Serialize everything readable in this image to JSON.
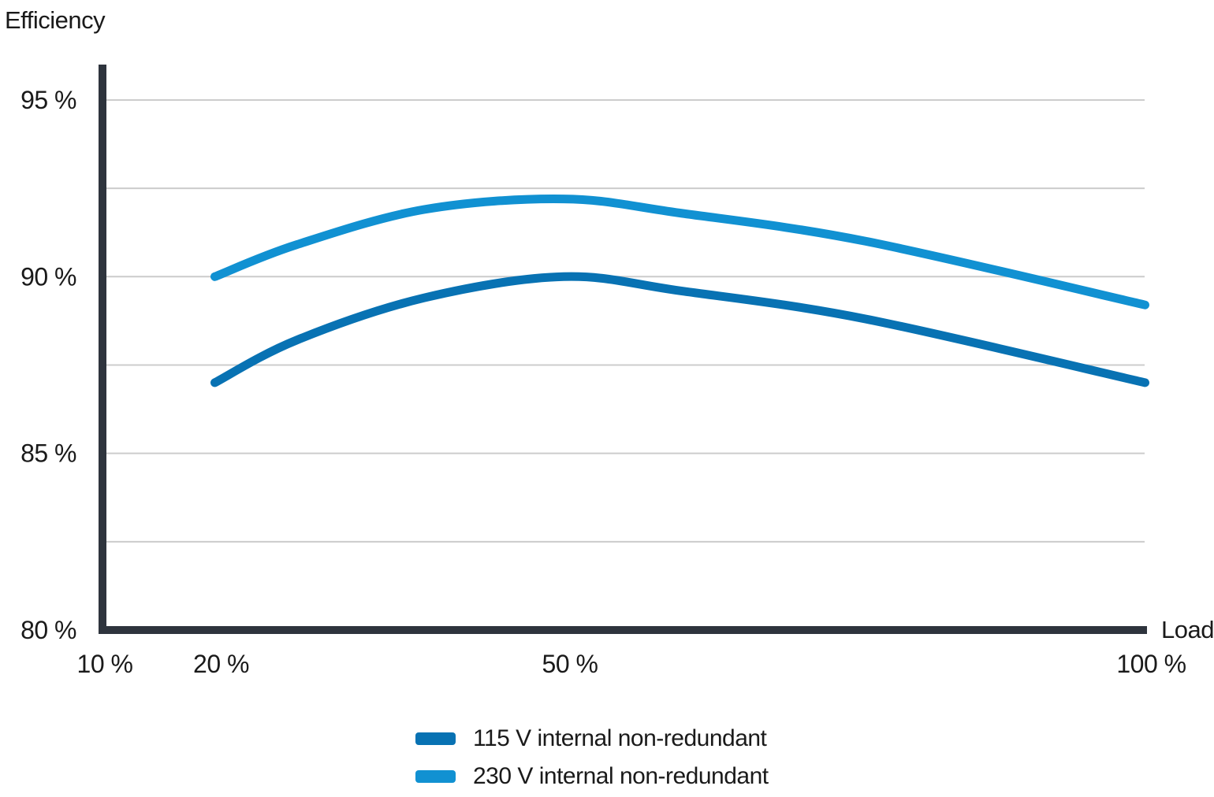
{
  "page": {
    "background": "#ffffff"
  },
  "chart_data": {
    "type": "line",
    "title": "",
    "ylabel": "Efficiency",
    "xlabel": "Load",
    "xlim": [
      10,
      100
    ],
    "ylim": [
      80,
      96
    ],
    "grid": true,
    "legend_position": "bottom-center",
    "axis_color": "#2e343d",
    "grid_color": "#cccccc",
    "text_color": "#1a1a1a",
    "x_ticks": [
      {
        "value": 10,
        "label": "10 %"
      },
      {
        "value": 20,
        "label": "20 %"
      },
      {
        "value": 50,
        "label": "50 %"
      },
      {
        "value": 100,
        "label": "100 %"
      }
    ],
    "y_ticks": [
      {
        "value": 95,
        "label": "95 %"
      },
      {
        "value": 90,
        "label": "90 %"
      },
      {
        "value": 85,
        "label": "85 %"
      },
      {
        "value": 80,
        "label": "80 %"
      }
    ],
    "y_gridlines": [
      82.5,
      85,
      87.5,
      90,
      92.5,
      95
    ],
    "series": [
      {
        "name": "115 V internal non-redundant",
        "color": "#0872b3",
        "x": [
          20,
          27,
          38,
          50,
          60,
          76,
          100
        ],
        "y": [
          87.0,
          88.2,
          89.4,
          90.0,
          89.6,
          88.8,
          87.0
        ]
      },
      {
        "name": "230 V internal non-redundant",
        "color": "#1191d2",
        "x": [
          20,
          27,
          38,
          50,
          60,
          76,
          100
        ],
        "y": [
          90.0,
          90.9,
          91.9,
          92.2,
          91.8,
          91.0,
          89.2
        ]
      }
    ]
  }
}
